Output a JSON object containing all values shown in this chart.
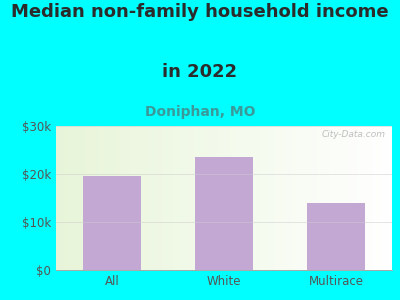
{
  "title_line1": "Median non-family household income",
  "title_line2": "in 2022",
  "subtitle": "Doniphan, MO",
  "categories": [
    "All",
    "White",
    "Multirace"
  ],
  "values": [
    19500,
    23500,
    14000
  ],
  "bar_color": "#C4A8D4",
  "background_outer": "#00FFFF",
  "title_color": "#2B2B2B",
  "subtitle_color": "#3A9A9A",
  "tick_label_color": "#555555",
  "ylim": [
    0,
    30000
  ],
  "yticks": [
    0,
    10000,
    20000,
    30000
  ],
  "ytick_labels": [
    "$0",
    "$10k",
    "$20k",
    "$30k"
  ],
  "watermark": "City-Data.com",
  "title_fontsize": 13,
  "subtitle_fontsize": 10,
  "tick_fontsize": 8.5
}
